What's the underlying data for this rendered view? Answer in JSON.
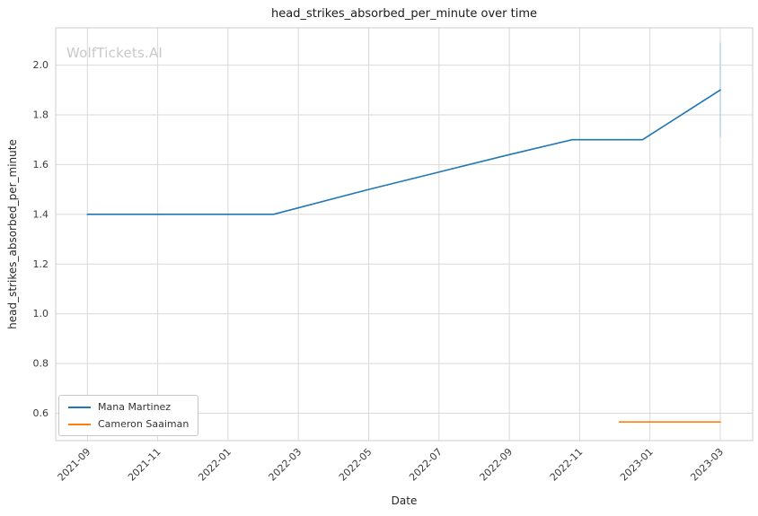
{
  "watermark": "WolfTickets.AI",
  "chart_data": {
    "type": "line",
    "title": "head_strikes_absorbed_per_minute over time",
    "xlabel": "Date",
    "ylabel": "head_strikes_absorbed_per_minute",
    "x_ticks": [
      "2021-09",
      "2021-11",
      "2022-01",
      "2022-03",
      "2022-05",
      "2022-07",
      "2022-09",
      "2022-11",
      "2023-01",
      "2023-03"
    ],
    "y_ticks": [
      0.6,
      0.8,
      1.0,
      1.2,
      1.4,
      1.6,
      1.8,
      2.0
    ],
    "xlim": [
      "2021-08-04",
      "2023-03-29"
    ],
    "ylim": [
      0.49,
      2.15
    ],
    "grid": true,
    "grid_color": "#d9d9d9",
    "border_color": "#cccccc",
    "legend_position": "lower left",
    "series": [
      {
        "name": "Mana Martinez",
        "color": "#1f77b4",
        "points": [
          [
            "2021-09-01",
            1.4
          ],
          [
            "2021-11-01",
            1.4
          ],
          [
            "2022-01-01",
            1.4
          ],
          [
            "2022-02-10",
            1.4
          ],
          [
            "2022-05-01",
            1.5
          ],
          [
            "2022-07-01",
            1.57
          ],
          [
            "2022-09-01",
            1.64
          ],
          [
            "2022-10-25",
            1.7
          ],
          [
            "2022-12-25",
            1.7
          ],
          [
            "2023-03-01",
            1.9
          ]
        ]
      },
      {
        "name": "Cameron Saaiman",
        "color": "#ff7f0e",
        "points": [
          [
            "2022-12-05",
            0.565
          ],
          [
            "2023-03-01",
            0.565
          ]
        ]
      }
    ],
    "error_bars": [
      {
        "series": "Mana Martinez",
        "x": "2023-03-01",
        "y_low": 1.71,
        "y_high": 2.09,
        "color": "#bcd6e8"
      }
    ]
  }
}
